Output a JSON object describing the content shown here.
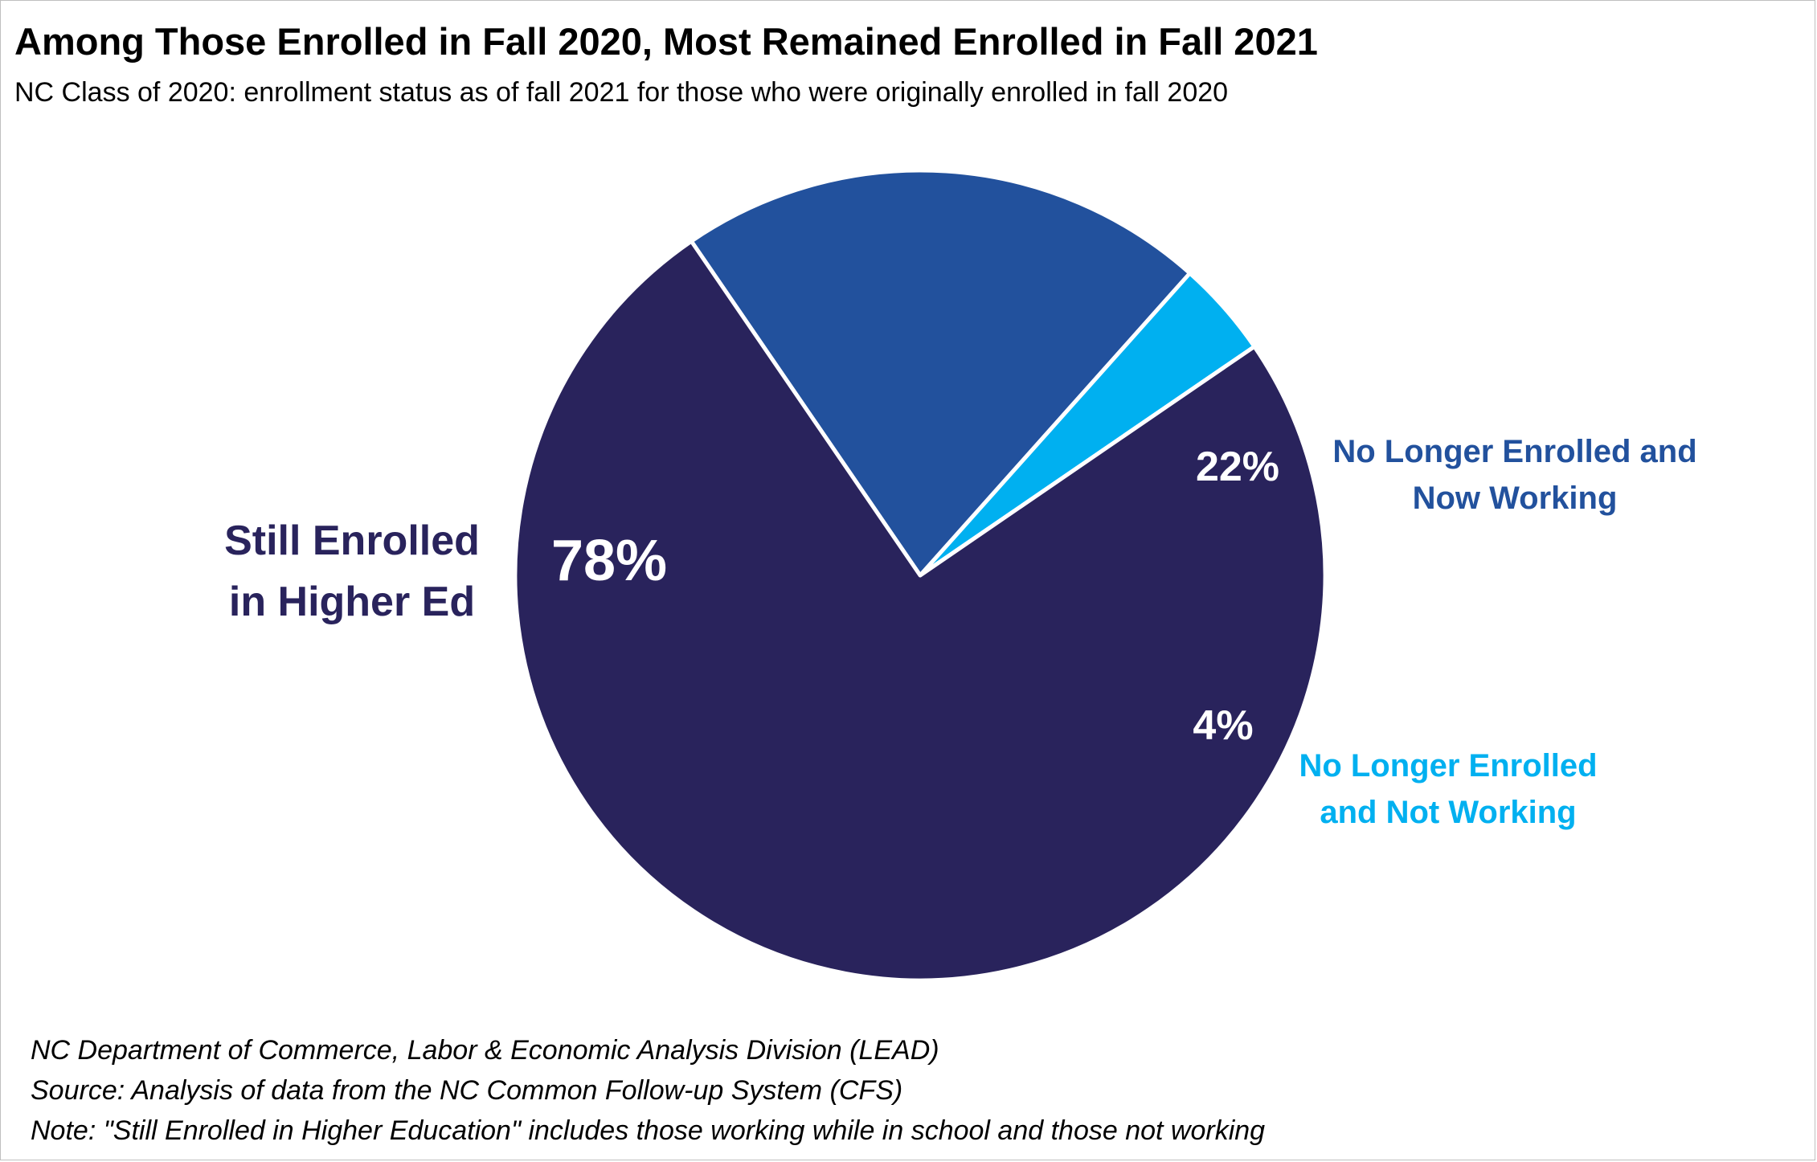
{
  "chart_data": {
    "type": "pie",
    "title": "Among Those Enrolled in Fall 2020, Most Remained Enrolled in Fall 2021",
    "subtitle": "NC Class of 2020: enrollment status as of fall 2021 for those who were originally enrolled in fall 2020",
    "slices": [
      {
        "label_lines": [
          "No Longer Enrolled and",
          "Now Working"
        ],
        "value": 22,
        "value_label": "22%",
        "color": "#22519d",
        "label_color": "#22519d"
      },
      {
        "label_lines": [
          "No Longer Enrolled",
          "and Not Working"
        ],
        "value": 4,
        "value_label": "4%",
        "color": "#00b0f0",
        "label_color": "#00b0f0"
      },
      {
        "label_lines": [
          "Still Enrolled",
          "in Higher Ed"
        ],
        "value": 78,
        "value_label": "78%",
        "color": "#29235c",
        "label_color": "#29235c"
      }
    ]
  },
  "footer": {
    "lines": [
      "NC Department of Commerce, Labor & Economic Analysis Division (LEAD)",
      "Source: Analysis of data from the NC Common Follow-up System (CFS)",
      "Note: \"Still Enrolled in Higher Education\" includes those working while in school and those not working"
    ]
  }
}
